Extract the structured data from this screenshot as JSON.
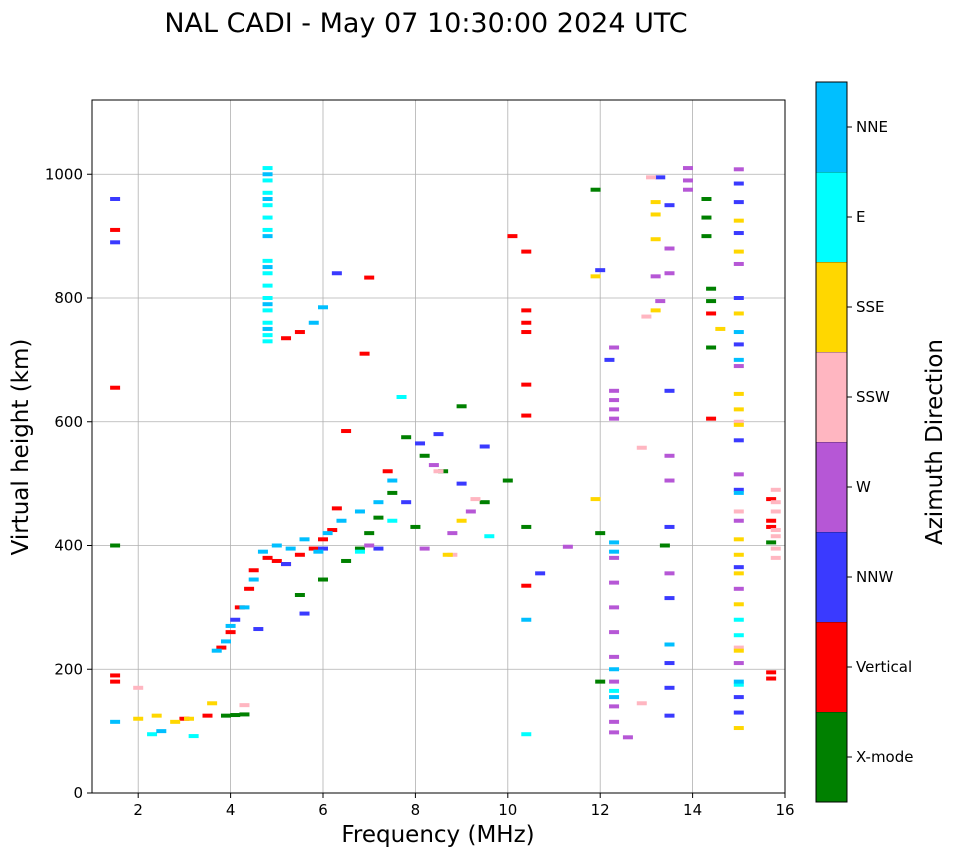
{
  "chart_data": {
    "type": "scatter",
    "title": "NAL CADI - May 07 10:30:00 2024 UTC",
    "xlabel": "Frequency (MHz)",
    "ylabel": "Virtual height (km)",
    "xlim": [
      1.0,
      16.0
    ],
    "ylim": [
      0,
      1120
    ],
    "xticks": [
      2,
      4,
      6,
      8,
      10,
      12,
      14,
      16
    ],
    "xtick_labels": [
      "2",
      "4",
      "6",
      "8",
      "10",
      "12",
      "14",
      "16"
    ],
    "yticks": [
      0,
      200,
      400,
      600,
      800,
      1000
    ],
    "ytick_labels": [
      "0",
      "200",
      "400",
      "600",
      "800",
      "1000"
    ],
    "grid": true,
    "colorbar": {
      "label": "Azimuth Direction",
      "categories": [
        "X-mode",
        "Vertical",
        "NNW",
        "W",
        "SSW",
        "SSE",
        "E",
        "NNE"
      ],
      "colors": [
        "#008000",
        "#ff0000",
        "#3a3aff",
        "#b657d6",
        "#ffb6c1",
        "#ffd700",
        "#00ffff",
        "#00bfff"
      ]
    },
    "series": [
      {
        "name": "X-mode",
        "color": "#008000",
        "points": [
          [
            1.5,
            400
          ],
          [
            3.9,
            125
          ],
          [
            4.1,
            126
          ],
          [
            4.3,
            127
          ],
          [
            6.0,
            345
          ],
          [
            6.5,
            375
          ],
          [
            7.0,
            420
          ],
          [
            7.5,
            485
          ],
          [
            7.8,
            575
          ],
          [
            8.2,
            545
          ],
          [
            8.6,
            520
          ],
          [
            9.0,
            625
          ],
          [
            9.5,
            470
          ],
          [
            10.0,
            505
          ],
          [
            10.4,
            430
          ],
          [
            11.9,
            975
          ],
          [
            12.0,
            420
          ],
          [
            12.0,
            180
          ],
          [
            13.4,
            400
          ],
          [
            14.3,
            960
          ],
          [
            14.3,
            930
          ],
          [
            14.3,
            900
          ],
          [
            14.4,
            815
          ],
          [
            14.4,
            795
          ],
          [
            14.4,
            720
          ],
          [
            15.7,
            405
          ],
          [
            5.5,
            320
          ],
          [
            6.8,
            395
          ],
          [
            7.2,
            445
          ],
          [
            8.0,
            430
          ]
        ]
      },
      {
        "name": "Vertical",
        "color": "#ff0000",
        "points": [
          [
            1.5,
            910
          ],
          [
            1.5,
            655
          ],
          [
            1.5,
            190
          ],
          [
            1.5,
            180
          ],
          [
            3.0,
            120
          ],
          [
            3.5,
            125
          ],
          [
            3.8,
            235
          ],
          [
            4.0,
            260
          ],
          [
            4.2,
            300
          ],
          [
            4.5,
            360
          ],
          [
            4.8,
            380
          ],
          [
            5.0,
            375
          ],
          [
            5.2,
            370
          ],
          [
            5.5,
            385
          ],
          [
            5.8,
            395
          ],
          [
            6.0,
            410
          ],
          [
            6.3,
            460
          ],
          [
            6.5,
            585
          ],
          [
            6.9,
            710
          ],
          [
            7.0,
            833
          ],
          [
            7.4,
            520
          ],
          [
            5.2,
            735
          ],
          [
            5.5,
            745
          ],
          [
            10.1,
            900
          ],
          [
            10.4,
            875
          ],
          [
            10.4,
            780
          ],
          [
            10.4,
            760
          ],
          [
            10.4,
            745
          ],
          [
            10.4,
            660
          ],
          [
            10.4,
            610
          ],
          [
            10.4,
            335
          ],
          [
            14.4,
            775
          ],
          [
            14.4,
            605
          ],
          [
            15.7,
            475
          ],
          [
            15.7,
            440
          ],
          [
            15.7,
            430
          ],
          [
            15.7,
            195
          ],
          [
            15.7,
            185
          ],
          [
            4.4,
            330
          ],
          [
            6.2,
            425
          ]
        ]
      },
      {
        "name": "NNW",
        "color": "#3a3aff",
        "points": [
          [
            1.5,
            960
          ],
          [
            1.5,
            890
          ],
          [
            4.6,
            265
          ],
          [
            5.2,
            370
          ],
          [
            6.0,
            395
          ],
          [
            7.2,
            395
          ],
          [
            7.8,
            470
          ],
          [
            8.1,
            565
          ],
          [
            8.5,
            580
          ],
          [
            9.0,
            500
          ],
          [
            9.5,
            560
          ],
          [
            10.7,
            355
          ],
          [
            12.0,
            845
          ],
          [
            12.2,
            700
          ],
          [
            13.3,
            995
          ],
          [
            13.5,
            950
          ],
          [
            13.5,
            650
          ],
          [
            13.5,
            430
          ],
          [
            13.5,
            315
          ],
          [
            13.5,
            210
          ],
          [
            13.5,
            170
          ],
          [
            13.5,
            125
          ],
          [
            15.0,
            985
          ],
          [
            15.0,
            955
          ],
          [
            15.0,
            905
          ],
          [
            15.0,
            800
          ],
          [
            15.0,
            725
          ],
          [
            15.0,
            570
          ],
          [
            15.0,
            490
          ],
          [
            15.0,
            365
          ],
          [
            15.0,
            155
          ],
          [
            15.0,
            130
          ],
          [
            5.6,
            290
          ],
          [
            6.3,
            840
          ],
          [
            4.1,
            280
          ]
        ]
      },
      {
        "name": "W",
        "color": "#b657d6",
        "points": [
          [
            13.9,
            1010
          ],
          [
            13.9,
            990
          ],
          [
            13.9,
            975
          ],
          [
            12.3,
            720
          ],
          [
            12.3,
            650
          ],
          [
            12.3,
            635
          ],
          [
            12.3,
            620
          ],
          [
            12.3,
            605
          ],
          [
            12.3,
            380
          ],
          [
            12.3,
            340
          ],
          [
            12.3,
            300
          ],
          [
            12.3,
            260
          ],
          [
            12.3,
            220
          ],
          [
            12.3,
            180
          ],
          [
            12.3,
            140
          ],
          [
            12.3,
            115
          ],
          [
            12.3,
            98
          ],
          [
            12.6,
            90
          ],
          [
            13.2,
            835
          ],
          [
            13.3,
            795
          ],
          [
            13.5,
            880
          ],
          [
            13.5,
            840
          ],
          [
            13.5,
            545
          ],
          [
            13.5,
            505
          ],
          [
            13.5,
            355
          ],
          [
            15.0,
            1008
          ],
          [
            15.0,
            855
          ],
          [
            15.0,
            690
          ],
          [
            15.0,
            515
          ],
          [
            15.0,
            440
          ],
          [
            15.0,
            330
          ],
          [
            15.0,
            210
          ],
          [
            8.4,
            530
          ],
          [
            8.8,
            420
          ],
          [
            9.2,
            455
          ],
          [
            11.3,
            398
          ],
          [
            8.2,
            395
          ],
          [
            7.0,
            400
          ]
        ]
      },
      {
        "name": "SSW",
        "color": "#ffb6c1",
        "points": [
          [
            15.8,
            490
          ],
          [
            15.8,
            470
          ],
          [
            15.8,
            455
          ],
          [
            15.8,
            425
          ],
          [
            15.8,
            415
          ],
          [
            15.8,
            395
          ],
          [
            15.8,
            380
          ],
          [
            13.1,
            995
          ],
          [
            13.0,
            770
          ],
          [
            12.9,
            558
          ],
          [
            12.9,
            145
          ],
          [
            15.0,
            235
          ],
          [
            15.0,
            455
          ],
          [
            15.0,
            600
          ],
          [
            9.3,
            475
          ],
          [
            8.8,
            385
          ],
          [
            8.5,
            520
          ],
          [
            4.3,
            142
          ],
          [
            2.0,
            170
          ]
        ]
      },
      {
        "name": "SSE",
        "color": "#ffd700",
        "points": [
          [
            13.2,
            955
          ],
          [
            13.2,
            935
          ],
          [
            13.2,
            895
          ],
          [
            13.2,
            780
          ],
          [
            14.6,
            750
          ],
          [
            15.0,
            925
          ],
          [
            15.0,
            875
          ],
          [
            15.0,
            775
          ],
          [
            15.0,
            645
          ],
          [
            15.0,
            620
          ],
          [
            15.0,
            595
          ],
          [
            15.0,
            410
          ],
          [
            15.0,
            385
          ],
          [
            15.0,
            355
          ],
          [
            15.0,
            305
          ],
          [
            15.0,
            230
          ],
          [
            15.0,
            105
          ],
          [
            11.9,
            835
          ],
          [
            11.9,
            475
          ],
          [
            2.0,
            120
          ],
          [
            2.4,
            125
          ],
          [
            2.8,
            115
          ],
          [
            3.1,
            120
          ],
          [
            3.6,
            145
          ],
          [
            8.7,
            385
          ],
          [
            9.0,
            440
          ]
        ]
      },
      {
        "name": "E",
        "color": "#00ffff",
        "points": [
          [
            4.8,
            1010
          ],
          [
            4.8,
            990
          ],
          [
            4.8,
            970
          ],
          [
            4.8,
            950
          ],
          [
            4.8,
            930
          ],
          [
            4.8,
            910
          ],
          [
            4.8,
            860
          ],
          [
            4.8,
            840
          ],
          [
            4.8,
            820
          ],
          [
            4.8,
            800
          ],
          [
            4.8,
            780
          ],
          [
            4.8,
            760
          ],
          [
            4.8,
            740
          ],
          [
            4.8,
            730
          ],
          [
            2.3,
            95
          ],
          [
            3.2,
            92
          ],
          [
            10.4,
            95
          ],
          [
            12.3,
            165
          ],
          [
            15.0,
            280
          ],
          [
            15.0,
            255
          ],
          [
            15.0,
            175
          ],
          [
            7.7,
            640
          ],
          [
            6.8,
            390
          ],
          [
            7.5,
            440
          ],
          [
            9.6,
            415
          ]
        ]
      },
      {
        "name": "NNE",
        "color": "#00bfff",
        "points": [
          [
            4.8,
            1000
          ],
          [
            4.8,
            960
          ],
          [
            4.8,
            900
          ],
          [
            4.8,
            850
          ],
          [
            4.8,
            790
          ],
          [
            4.8,
            750
          ],
          [
            3.7,
            230
          ],
          [
            3.9,
            245
          ],
          [
            4.0,
            270
          ],
          [
            4.3,
            300
          ],
          [
            4.5,
            345
          ],
          [
            4.7,
            390
          ],
          [
            5.0,
            400
          ],
          [
            5.3,
            395
          ],
          [
            5.6,
            410
          ],
          [
            5.9,
            390
          ],
          [
            6.1,
            420
          ],
          [
            6.4,
            440
          ],
          [
            6.8,
            455
          ],
          [
            7.2,
            470
          ],
          [
            7.5,
            505
          ],
          [
            5.8,
            760
          ],
          [
            6.0,
            785
          ],
          [
            12.3,
            405
          ],
          [
            12.3,
            390
          ],
          [
            12.3,
            200
          ],
          [
            12.3,
            155
          ],
          [
            13.5,
            240
          ],
          [
            15.0,
            745
          ],
          [
            15.0,
            700
          ],
          [
            15.0,
            485
          ],
          [
            15.0,
            180
          ],
          [
            10.4,
            280
          ],
          [
            1.5,
            115
          ],
          [
            2.5,
            100
          ]
        ]
      }
    ]
  }
}
